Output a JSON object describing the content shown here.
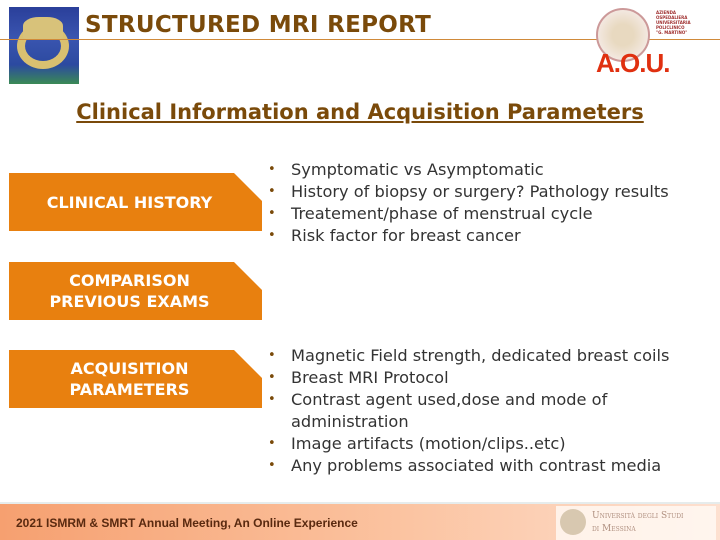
{
  "header": {
    "title": "STRUCTURED MRI REPORT",
    "right_logo_text": "A.O.U."
  },
  "subtitle": "Clinical Information and Acquisition Parameters",
  "sections": [
    {
      "label_lines": [
        "CLINICAL HISTORY"
      ],
      "bullets": [
        "Symptomatic vs Asymptomatic",
        "History of biopsy or surgery? Pathology results",
        "Treatement/phase of menstrual cycle",
        "Risk factor for breast cancer"
      ]
    },
    {
      "label_lines": [
        "COMPARISON",
        "PREVIOUS EXAMS"
      ],
      "bullets": []
    },
    {
      "label_lines": [
        "ACQUISITION",
        "PARAMETERS"
      ],
      "bullets": [
        "Magnetic Field strength, dedicated breast coils",
        "Breast MRI Protocol",
        "Contrast agent used,dose and mode of administration",
        "Image artifacts (motion/clips..etc)",
        "Any problems associated with contrast media"
      ]
    }
  ],
  "footer": {
    "text": "2021 ISMRM & SMRT Annual Meeting, An Online Experience",
    "university_line1": "Università degli Studi",
    "university_line2": "di Messina"
  },
  "colors": {
    "accent": "#e8800f",
    "title": "#7a4a0a"
  }
}
